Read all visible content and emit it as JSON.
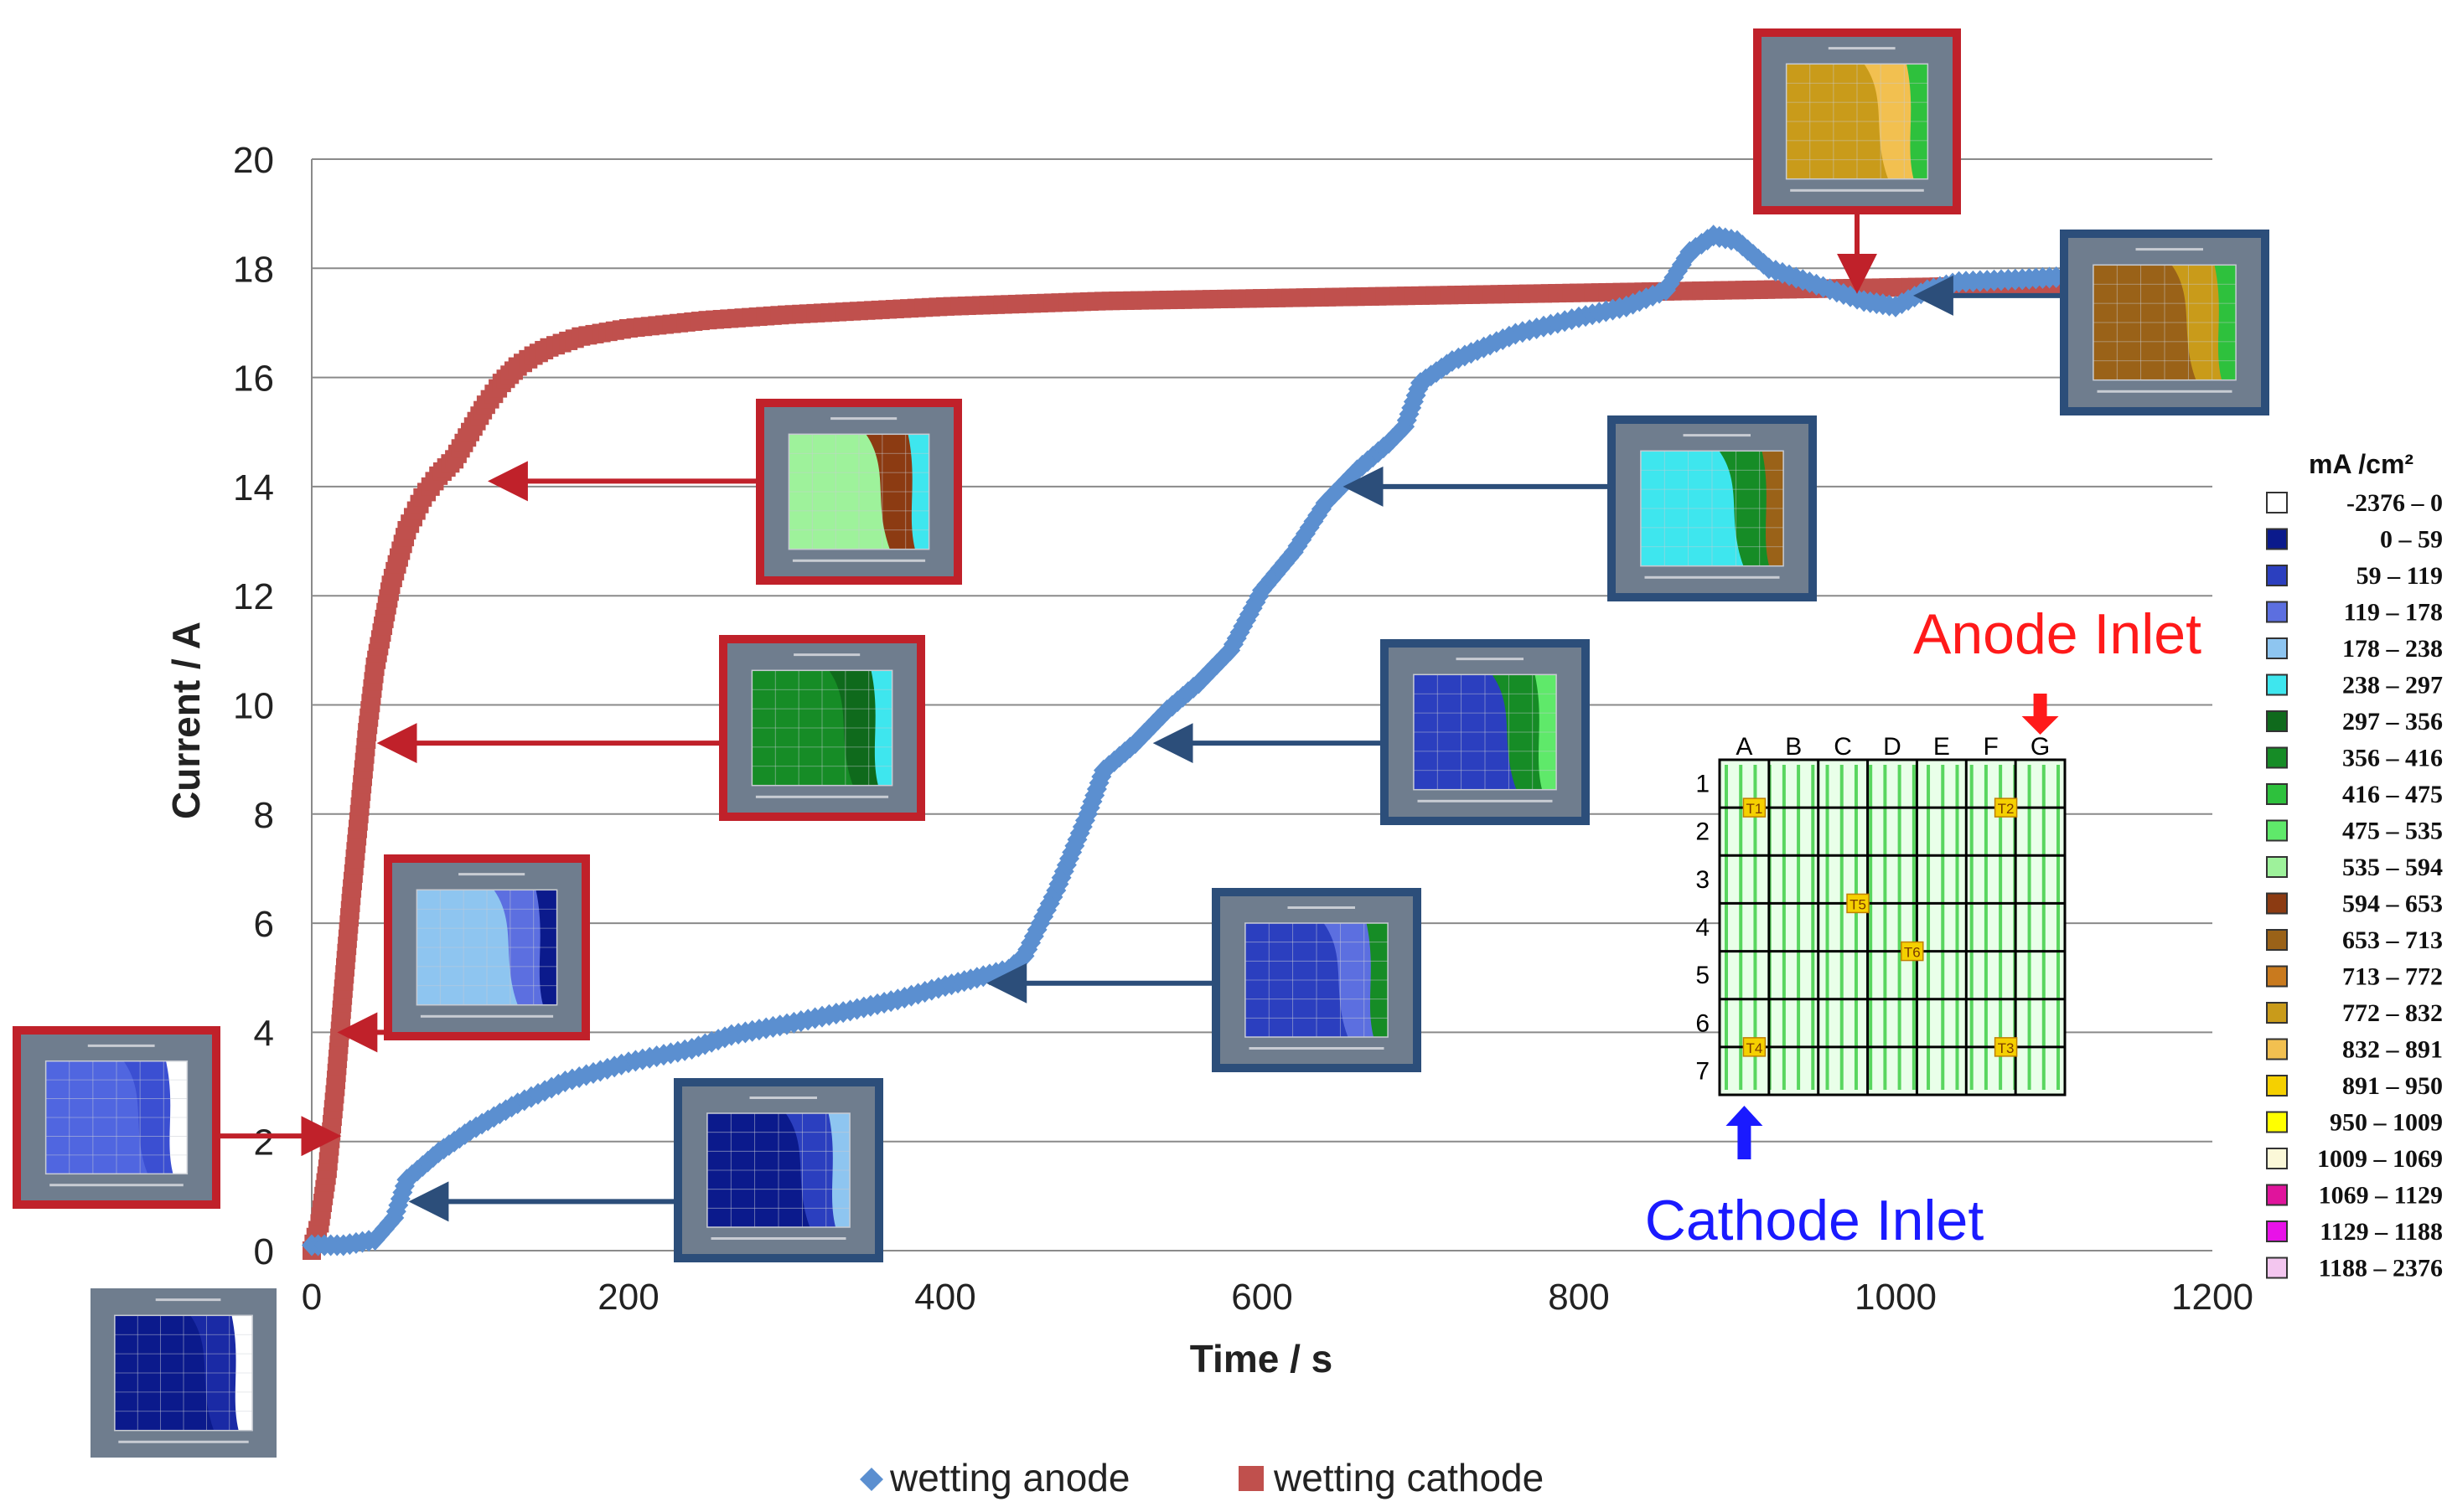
{
  "chart_data": {
    "type": "scatter",
    "xlabel": "Time / s",
    "ylabel": "Current / A",
    "xlim": [
      0,
      1200
    ],
    "ylim": [
      0,
      20
    ],
    "x_ticks": [
      "0",
      "200",
      "400",
      "600",
      "800",
      "1000",
      "1200"
    ],
    "y_ticks": [
      "0",
      "2",
      "4",
      "6",
      "8",
      "10",
      "12",
      "14",
      "16",
      "18",
      "20"
    ],
    "grid": "horizontal",
    "legend_position": "bottom",
    "series": [
      {
        "name": "wetting anode",
        "color": "#5b8fd0",
        "marker": "diamond",
        "points": [
          [
            0,
            0.1
          ],
          [
            20,
            0.1
          ],
          [
            40,
            0.2
          ],
          [
            52,
            0.6
          ],
          [
            60,
            1.3
          ],
          [
            80,
            1.8
          ],
          [
            100,
            2.2
          ],
          [
            130,
            2.7
          ],
          [
            160,
            3.1
          ],
          [
            200,
            3.45
          ],
          [
            240,
            3.7
          ],
          [
            265,
            3.95
          ],
          [
            300,
            4.15
          ],
          [
            340,
            4.4
          ],
          [
            370,
            4.6
          ],
          [
            400,
            4.85
          ],
          [
            420,
            5.0
          ],
          [
            440,
            5.15
          ],
          [
            450,
            5.4
          ],
          [
            460,
            6.0
          ],
          [
            470,
            6.6
          ],
          [
            480,
            7.3
          ],
          [
            490,
            8.0
          ],
          [
            500,
            8.8
          ],
          [
            520,
            9.3
          ],
          [
            540,
            9.9
          ],
          [
            560,
            10.4
          ],
          [
            580,
            11.0
          ],
          [
            600,
            12.1
          ],
          [
            620,
            12.8
          ],
          [
            640,
            13.7
          ],
          [
            660,
            14.3
          ],
          [
            680,
            14.8
          ],
          [
            690,
            15.1
          ],
          [
            700,
            15.9
          ],
          [
            720,
            16.3
          ],
          [
            760,
            16.8
          ],
          [
            800,
            17.1
          ],
          [
            830,
            17.3
          ],
          [
            855,
            17.6
          ],
          [
            870,
            18.3
          ],
          [
            885,
            18.6
          ],
          [
            900,
            18.5
          ],
          [
            920,
            18.0
          ],
          [
            950,
            17.7
          ],
          [
            980,
            17.4
          ],
          [
            1000,
            17.3
          ],
          [
            1020,
            17.6
          ],
          [
            1040,
            17.75
          ],
          [
            1080,
            17.8
          ],
          [
            1110,
            17.85
          ]
        ]
      },
      {
        "name": "wetting cathode",
        "color": "#c0504d",
        "marker": "square",
        "points": [
          [
            0,
            0.0
          ],
          [
            5,
            0.5
          ],
          [
            10,
            1.5
          ],
          [
            15,
            3.0
          ],
          [
            20,
            4.8
          ],
          [
            25,
            6.5
          ],
          [
            30,
            8.0
          ],
          [
            35,
            9.5
          ],
          [
            40,
            10.7
          ],
          [
            50,
            12.2
          ],
          [
            60,
            13.2
          ],
          [
            70,
            13.8
          ],
          [
            80,
            14.2
          ],
          [
            90,
            14.5
          ],
          [
            100,
            15.0
          ],
          [
            110,
            15.5
          ],
          [
            120,
            15.9
          ],
          [
            130,
            16.2
          ],
          [
            140,
            16.4
          ],
          [
            150,
            16.55
          ],
          [
            170,
            16.75
          ],
          [
            200,
            16.9
          ],
          [
            250,
            17.05
          ],
          [
            300,
            17.15
          ],
          [
            400,
            17.3
          ],
          [
            500,
            17.4
          ],
          [
            600,
            17.45
          ],
          [
            700,
            17.5
          ],
          [
            800,
            17.55
          ],
          [
            900,
            17.6
          ],
          [
            1000,
            17.65
          ],
          [
            1100,
            17.7
          ]
        ]
      }
    ],
    "legend_entries": [
      "wetting anode",
      "wetting cathode"
    ],
    "annotations": {
      "anode_inlet": "Anode Inlet",
      "cathode_inlet": "Cathode Inlet",
      "grid_columns": [
        "A",
        "B",
        "C",
        "D",
        "E",
        "F",
        "G"
      ],
      "grid_rows": [
        "1",
        "2",
        "3",
        "4",
        "5",
        "6",
        "7"
      ],
      "thermocouple_labels": [
        "T1",
        "T2",
        "T5",
        "T6",
        "T4",
        "T3"
      ]
    },
    "colorbar": {
      "title": "mA /cm²",
      "entries": [
        {
          "range": "-2376 –    0",
          "color": "#ffffff"
        },
        {
          "range": "0 –   59",
          "color": "#0b1a8c"
        },
        {
          "range": "59 – 119",
          "color": "#2b3fbf"
        },
        {
          "range": "119 – 178",
          "color": "#5c6fe0"
        },
        {
          "range": "178 – 238",
          "color": "#8ec5f0"
        },
        {
          "range": "238 – 297",
          "color": "#3ee6ee"
        },
        {
          "range": "297 – 356",
          "color": "#0f6a1c"
        },
        {
          "range": "356 – 416",
          "color": "#168c26"
        },
        {
          "range": "416 – 475",
          "color": "#2ec13d"
        },
        {
          "range": "475 – 535",
          "color": "#5fe96a"
        },
        {
          "range": "535 – 594",
          "color": "#9ef29b"
        },
        {
          "range": "594 – 653",
          "color": "#8c3b12"
        },
        {
          "range": "653 – 713",
          "color": "#9a6218"
        },
        {
          "range": "713 – 772",
          "color": "#c97a1e"
        },
        {
          "range": "772 – 832",
          "color": "#c99b1a"
        },
        {
          "range": "832 – 891",
          "color": "#f2c050"
        },
        {
          "range": "891 – 950",
          "color": "#f5d000"
        },
        {
          "range": "950 – 1009",
          "color": "#ffff00"
        },
        {
          "range": "1009 – 1069",
          "color": "#fbf8d8"
        },
        {
          "range": "1069 – 1129",
          "color": "#e0149c"
        },
        {
          "range": "1129 – 1188",
          "color": "#e812e8"
        },
        {
          "range": "1188 – 2376",
          "color": "#f3c6ef"
        }
      ]
    },
    "insets": [
      {
        "series": "wetting cathode",
        "frame_color": "#c0212a",
        "x": 5,
        "y": 2.1,
        "palette": [
          "#5066e0",
          "#3b4fd2",
          "#ffffff"
        ]
      },
      {
        "series": "wetting cathode",
        "frame_color": "#c0212a",
        "x": 15,
        "y": 4.0,
        "palette": [
          "#8ec5f0",
          "#5c6fe0",
          "#0b1a8c"
        ]
      },
      {
        "series": "wetting cathode",
        "frame_color": "#c0212a",
        "x": 40,
        "y": 9.3,
        "palette": [
          "#168c26",
          "#0f6a1c",
          "#3ee6ee"
        ]
      },
      {
        "series": "wetting cathode",
        "frame_color": "#c0212a",
        "x": 110,
        "y": 14.1,
        "palette": [
          "#9ef29b",
          "#8c3b12",
          "#3ee6ee"
        ]
      },
      {
        "series": "wetting cathode",
        "frame_color": "#c0212a",
        "x": 1000,
        "y": 17.5,
        "palette": [
          "#c99b1a",
          "#f2c050",
          "#2ec13d"
        ]
      },
      {
        "series": "wetting anode",
        "frame_color": "#2c4e7a",
        "x": 60,
        "y": 0.9,
        "palette": [
          "#0b1a8c",
          "#2b3fbf",
          "#8ec5f0"
        ]
      },
      {
        "series": "wetting anode",
        "frame_color": "#2c4e7a",
        "x": 425,
        "y": 4.9,
        "palette": [
          "#2b3fbf",
          "#5c6fe0",
          "#168c26"
        ]
      },
      {
        "series": "wetting anode",
        "frame_color": "#2c4e7a",
        "x": 530,
        "y": 9.3,
        "palette": [
          "#2b3fbf",
          "#168c26",
          "#5fe96a"
        ]
      },
      {
        "series": "wetting anode",
        "frame_color": "#2c4e7a",
        "x": 650,
        "y": 14.0,
        "palette": [
          "#3ee6ee",
          "#168c26",
          "#9a6218"
        ]
      },
      {
        "series": "wetting anode",
        "frame_color": "#2c4e7a",
        "x": 1010,
        "y": 17.5,
        "palette": [
          "#9a6218",
          "#c99b1a",
          "#2ec13d"
        ]
      },
      {
        "series": "wetting anode",
        "frame_color": null,
        "x": null,
        "y": null,
        "palette": [
          "#0b1a8c",
          "#1a2aa5",
          "#ffffff"
        ]
      }
    ]
  }
}
